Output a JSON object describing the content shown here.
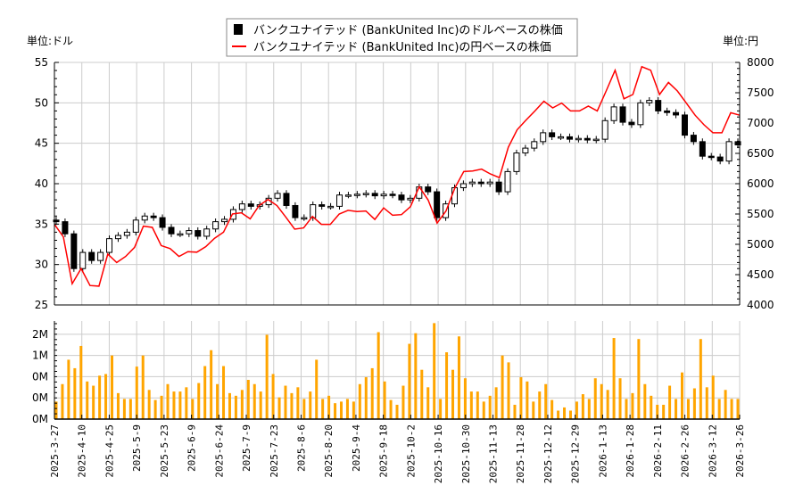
{
  "chart_data": [
    {
      "type": "candlestick+line",
      "legend": {
        "placement": "top-center",
        "entries": [
          {
            "label": "バンクユナイテッド (BankUnited Inc)のドルベースの株価",
            "color": "#000000",
            "marker": "square"
          },
          {
            "label": "バンクユナイテッド (BankUnited Inc)の円ベースの株価",
            "color": "#ff0000",
            "marker": "line"
          }
        ]
      },
      "left_unit_label": "単位:ドル",
      "right_unit_label": "単位:円",
      "y_left": {
        "range": [
          25,
          55
        ],
        "ticks": [
          25,
          30,
          35,
          40,
          45,
          50,
          55
        ]
      },
      "y_right": {
        "range": [
          4000,
          8000
        ],
        "ticks": [
          4000,
          4500,
          5000,
          5500,
          6000,
          6500,
          7000,
          7500,
          8000
        ]
      },
      "grid": true,
      "x_range": [
        "2025-3-27",
        "2026-3-26"
      ],
      "usd_close": [
        35.3,
        33.8,
        29.5,
        31.5,
        30.5,
        31.5,
        33.2,
        33.6,
        34,
        35.5,
        36,
        35.8,
        34.6,
        33.8,
        33.8,
        34.2,
        33.5,
        34.4,
        35.3,
        35.6,
        36.8,
        37.5,
        37.2,
        37.4,
        38.2,
        38.8,
        37.3,
        35.8,
        35.8,
        37.4,
        37.2,
        37.2,
        38.6,
        38.6,
        38.7,
        38.8,
        38.5,
        38.7,
        38.6,
        38.0,
        38.2,
        39.6,
        39,
        35.8,
        37.5,
        39.5,
        40,
        40.2,
        40,
        40.2,
        39,
        41.5,
        43.8,
        44.4,
        45.2,
        46.3,
        45.8,
        45.8,
        45.5,
        45.6,
        45.4,
        45.5,
        47.8,
        49.5,
        47.6,
        47.3,
        50,
        50.3,
        49,
        48.8,
        48.5,
        46,
        45.2,
        43.4,
        43.3,
        42.8,
        45.2,
        44.8
      ],
      "jpy_close": [
        5330,
        5125,
        4350,
        4600,
        4320,
        4310,
        4840,
        4700,
        4800,
        4950,
        5300,
        5280,
        4980,
        4930,
        4800,
        4880,
        4870,
        4960,
        5100,
        5200,
        5500,
        5520,
        5420,
        5640,
        5740,
        5640,
        5450,
        5250,
        5270,
        5460,
        5330,
        5330,
        5500,
        5560,
        5540,
        5550,
        5410,
        5600,
        5480,
        5490,
        5620,
        5950,
        5730,
        5350,
        5550,
        5930,
        6200,
        6210,
        6240,
        6160,
        6100,
        6600,
        6890,
        7050,
        7200,
        7360,
        7250,
        7330,
        7200,
        7200,
        7280,
        7200,
        7530,
        7870,
        7400,
        7470,
        7930,
        7870,
        7470,
        7670,
        7530,
        7330,
        7130,
        6970,
        6840,
        6840,
        7170,
        7130
      ]
    },
    {
      "type": "bar",
      "color": "#ffa500",
      "y_ticks": [
        0,
        0.4,
        0.8,
        1.2,
        1.6
      ],
      "y_tick_labels": [
        "0M",
        "0M",
        "0M",
        "1M",
        "2M"
      ],
      "y_range": [
        0,
        1.85
      ],
      "x_tick_labels": [
        "2025-3-27",
        "2025-4-10",
        "2025-4-25",
        "2025-5-9",
        "2025-5-23",
        "2025-6-9",
        "2025-6-24",
        "2025-7-9",
        "2025-7-23",
        "2025-8-6",
        "2025-8-20",
        "2025-9-4",
        "2025-9-18",
        "2025-10-2",
        "2025-10-16",
        "2025-10-30",
        "2025-11-13",
        "2025-11-28",
        "2025-12-12",
        "2025-12-29",
        "2026-1-13",
        "2026-1-28",
        "2026-2-11",
        "2026-2-26",
        "2026-3-12",
        "2026-3-26"
      ],
      "volume_millions": [
        0.33,
        0.66,
        1.12,
        0.96,
        1.38,
        0.71,
        0.63,
        0.82,
        0.85,
        1.2,
        0.49,
        0.38,
        0.38,
        0.99,
        1.2,
        0.55,
        0.36,
        0.44,
        0.66,
        0.52,
        0.52,
        0.6,
        0.38,
        0.68,
        1.0,
        1.3,
        0.66,
        1.0,
        0.49,
        0.44,
        0.55,
        0.74,
        0.66,
        0.52,
        1.59,
        0.85,
        0.41,
        0.63,
        0.49,
        0.6,
        0.38,
        0.52,
        1.12,
        0.38,
        0.44,
        0.3,
        0.33,
        0.38,
        0.33,
        0.66,
        0.79,
        0.96,
        1.64,
        0.71,
        0.36,
        0.27,
        0.63,
        1.42,
        1.62,
        0.93,
        0.6,
        1.81,
        0.38,
        1.26,
        0.93,
        1.56,
        0.77,
        0.52,
        0.52,
        0.33,
        0.44,
        0.6,
        1.2,
        1.07,
        0.27,
        0.79,
        0.71,
        0.33,
        0.52,
        0.66,
        0.36,
        0.16,
        0.22,
        0.16,
        0.33,
        0.47,
        0.38,
        0.77,
        0.66,
        0.55,
        1.53,
        0.77,
        0.38,
        0.49,
        1.51,
        0.66,
        0.44,
        0.27,
        0.27,
        0.63,
        0.38,
        0.88,
        0.38,
        0.58,
        1.51,
        0.6,
        0.82,
        0.38,
        0.55,
        0.38,
        0.38
      ]
    }
  ]
}
